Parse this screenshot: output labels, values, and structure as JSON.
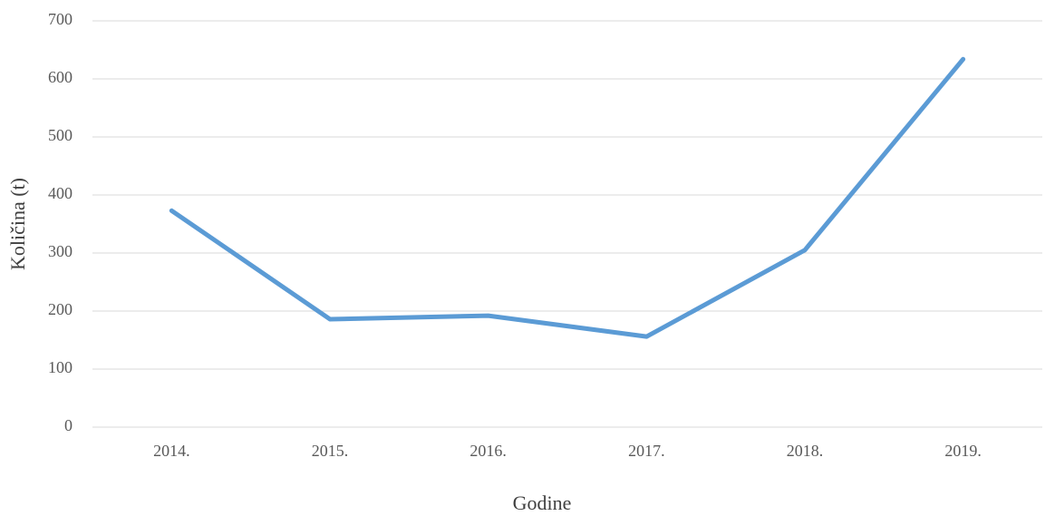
{
  "chart_data": {
    "type": "line",
    "x_label": "Godine",
    "y_label": "Količina (t)",
    "categories": [
      "2014.",
      "2015.",
      "2016.",
      "2017.",
      "2018.",
      "2019."
    ],
    "series": [
      {
        "name": null,
        "color": "#5b9bd5",
        "values": [
          373,
          186,
          192,
          156,
          305,
          634
        ]
      }
    ],
    "ylim": [
      0,
      700
    ],
    "yticks": [
      0,
      100,
      200,
      300,
      400,
      500,
      600,
      700
    ],
    "grid": true
  }
}
